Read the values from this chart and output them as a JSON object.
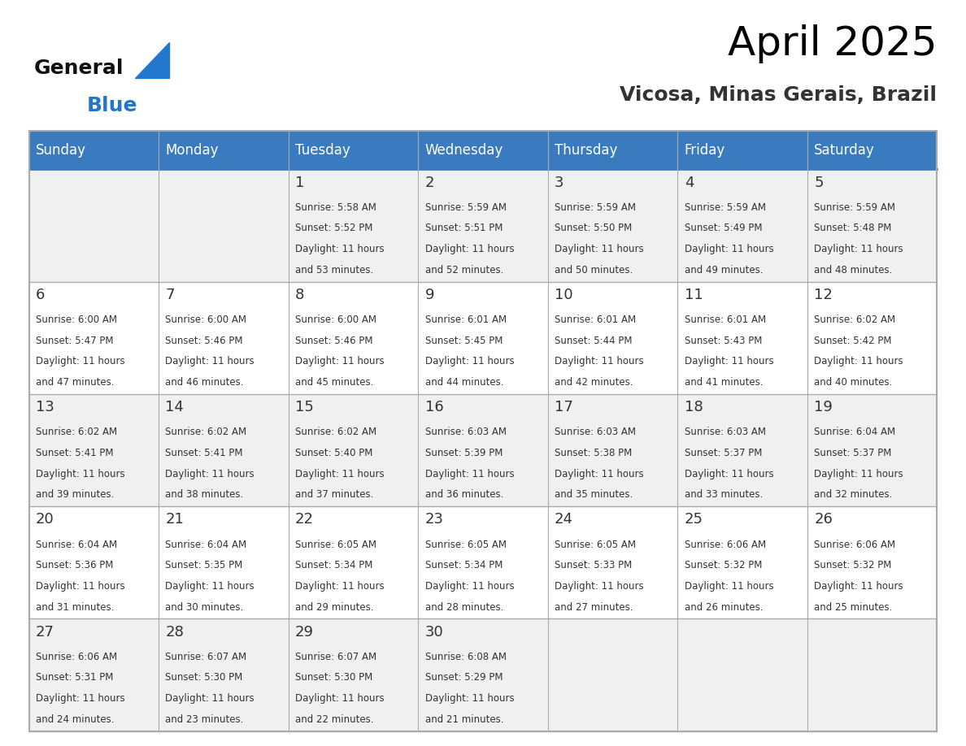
{
  "title": "April 2025",
  "subtitle": "Vicosa, Minas Gerais, Brazil",
  "header_bg_color": "#3a7bbf",
  "header_text_color": "#ffffff",
  "day_names": [
    "Sunday",
    "Monday",
    "Tuesday",
    "Wednesday",
    "Thursday",
    "Friday",
    "Saturday"
  ],
  "row1_bg": "#f0f0f0",
  "row2_bg": "#ffffff",
  "cell_border_color": "#3a7bbf",
  "day_num_color": "#333333",
  "cell_text_color": "#333333",
  "logo_general_color": "#111111",
  "logo_blue_color": "#2277cc",
  "logo_triangle_color": "#2277cc",
  "calendar": [
    [
      {
        "day": "",
        "sunrise": "",
        "sunset": "",
        "daylight": ""
      },
      {
        "day": "",
        "sunrise": "",
        "sunset": "",
        "daylight": ""
      },
      {
        "day": "1",
        "sunrise": "5:58 AM",
        "sunset": "5:52 PM",
        "daylight": "11 hours and 53 minutes."
      },
      {
        "day": "2",
        "sunrise": "5:59 AM",
        "sunset": "5:51 PM",
        "daylight": "11 hours and 52 minutes."
      },
      {
        "day": "3",
        "sunrise": "5:59 AM",
        "sunset": "5:50 PM",
        "daylight": "11 hours and 50 minutes."
      },
      {
        "day": "4",
        "sunrise": "5:59 AM",
        "sunset": "5:49 PM",
        "daylight": "11 hours and 49 minutes."
      },
      {
        "day": "5",
        "sunrise": "5:59 AM",
        "sunset": "5:48 PM",
        "daylight": "11 hours and 48 minutes."
      }
    ],
    [
      {
        "day": "6",
        "sunrise": "6:00 AM",
        "sunset": "5:47 PM",
        "daylight": "11 hours and 47 minutes."
      },
      {
        "day": "7",
        "sunrise": "6:00 AM",
        "sunset": "5:46 PM",
        "daylight": "11 hours and 46 minutes."
      },
      {
        "day": "8",
        "sunrise": "6:00 AM",
        "sunset": "5:46 PM",
        "daylight": "11 hours and 45 minutes."
      },
      {
        "day": "9",
        "sunrise": "6:01 AM",
        "sunset": "5:45 PM",
        "daylight": "11 hours and 44 minutes."
      },
      {
        "day": "10",
        "sunrise": "6:01 AM",
        "sunset": "5:44 PM",
        "daylight": "11 hours and 42 minutes."
      },
      {
        "day": "11",
        "sunrise": "6:01 AM",
        "sunset": "5:43 PM",
        "daylight": "11 hours and 41 minutes."
      },
      {
        "day": "12",
        "sunrise": "6:02 AM",
        "sunset": "5:42 PM",
        "daylight": "11 hours and 40 minutes."
      }
    ],
    [
      {
        "day": "13",
        "sunrise": "6:02 AM",
        "sunset": "5:41 PM",
        "daylight": "11 hours and 39 minutes."
      },
      {
        "day": "14",
        "sunrise": "6:02 AM",
        "sunset": "5:41 PM",
        "daylight": "11 hours and 38 minutes."
      },
      {
        "day": "15",
        "sunrise": "6:02 AM",
        "sunset": "5:40 PM",
        "daylight": "11 hours and 37 minutes."
      },
      {
        "day": "16",
        "sunrise": "6:03 AM",
        "sunset": "5:39 PM",
        "daylight": "11 hours and 36 minutes."
      },
      {
        "day": "17",
        "sunrise": "6:03 AM",
        "sunset": "5:38 PM",
        "daylight": "11 hours and 35 minutes."
      },
      {
        "day": "18",
        "sunrise": "6:03 AM",
        "sunset": "5:37 PM",
        "daylight": "11 hours and 33 minutes."
      },
      {
        "day": "19",
        "sunrise": "6:04 AM",
        "sunset": "5:37 PM",
        "daylight": "11 hours and 32 minutes."
      }
    ],
    [
      {
        "day": "20",
        "sunrise": "6:04 AM",
        "sunset": "5:36 PM",
        "daylight": "11 hours and 31 minutes."
      },
      {
        "day": "21",
        "sunrise": "6:04 AM",
        "sunset": "5:35 PM",
        "daylight": "11 hours and 30 minutes."
      },
      {
        "day": "22",
        "sunrise": "6:05 AM",
        "sunset": "5:34 PM",
        "daylight": "11 hours and 29 minutes."
      },
      {
        "day": "23",
        "sunrise": "6:05 AM",
        "sunset": "5:34 PM",
        "daylight": "11 hours and 28 minutes."
      },
      {
        "day": "24",
        "sunrise": "6:05 AM",
        "sunset": "5:33 PM",
        "daylight": "11 hours and 27 minutes."
      },
      {
        "day": "25",
        "sunrise": "6:06 AM",
        "sunset": "5:32 PM",
        "daylight": "11 hours and 26 minutes."
      },
      {
        "day": "26",
        "sunrise": "6:06 AM",
        "sunset": "5:32 PM",
        "daylight": "11 hours and 25 minutes."
      }
    ],
    [
      {
        "day": "27",
        "sunrise": "6:06 AM",
        "sunset": "5:31 PM",
        "daylight": "11 hours and 24 minutes."
      },
      {
        "day": "28",
        "sunrise": "6:07 AM",
        "sunset": "5:30 PM",
        "daylight": "11 hours and 23 minutes."
      },
      {
        "day": "29",
        "sunrise": "6:07 AM",
        "sunset": "5:30 PM",
        "daylight": "11 hours and 22 minutes."
      },
      {
        "day": "30",
        "sunrise": "6:08 AM",
        "sunset": "5:29 PM",
        "daylight": "11 hours and 21 minutes."
      },
      {
        "day": "",
        "sunrise": "",
        "sunset": "",
        "daylight": ""
      },
      {
        "day": "",
        "sunrise": "",
        "sunset": "",
        "daylight": ""
      },
      {
        "day": "",
        "sunrise": "",
        "sunset": "",
        "daylight": ""
      }
    ]
  ]
}
